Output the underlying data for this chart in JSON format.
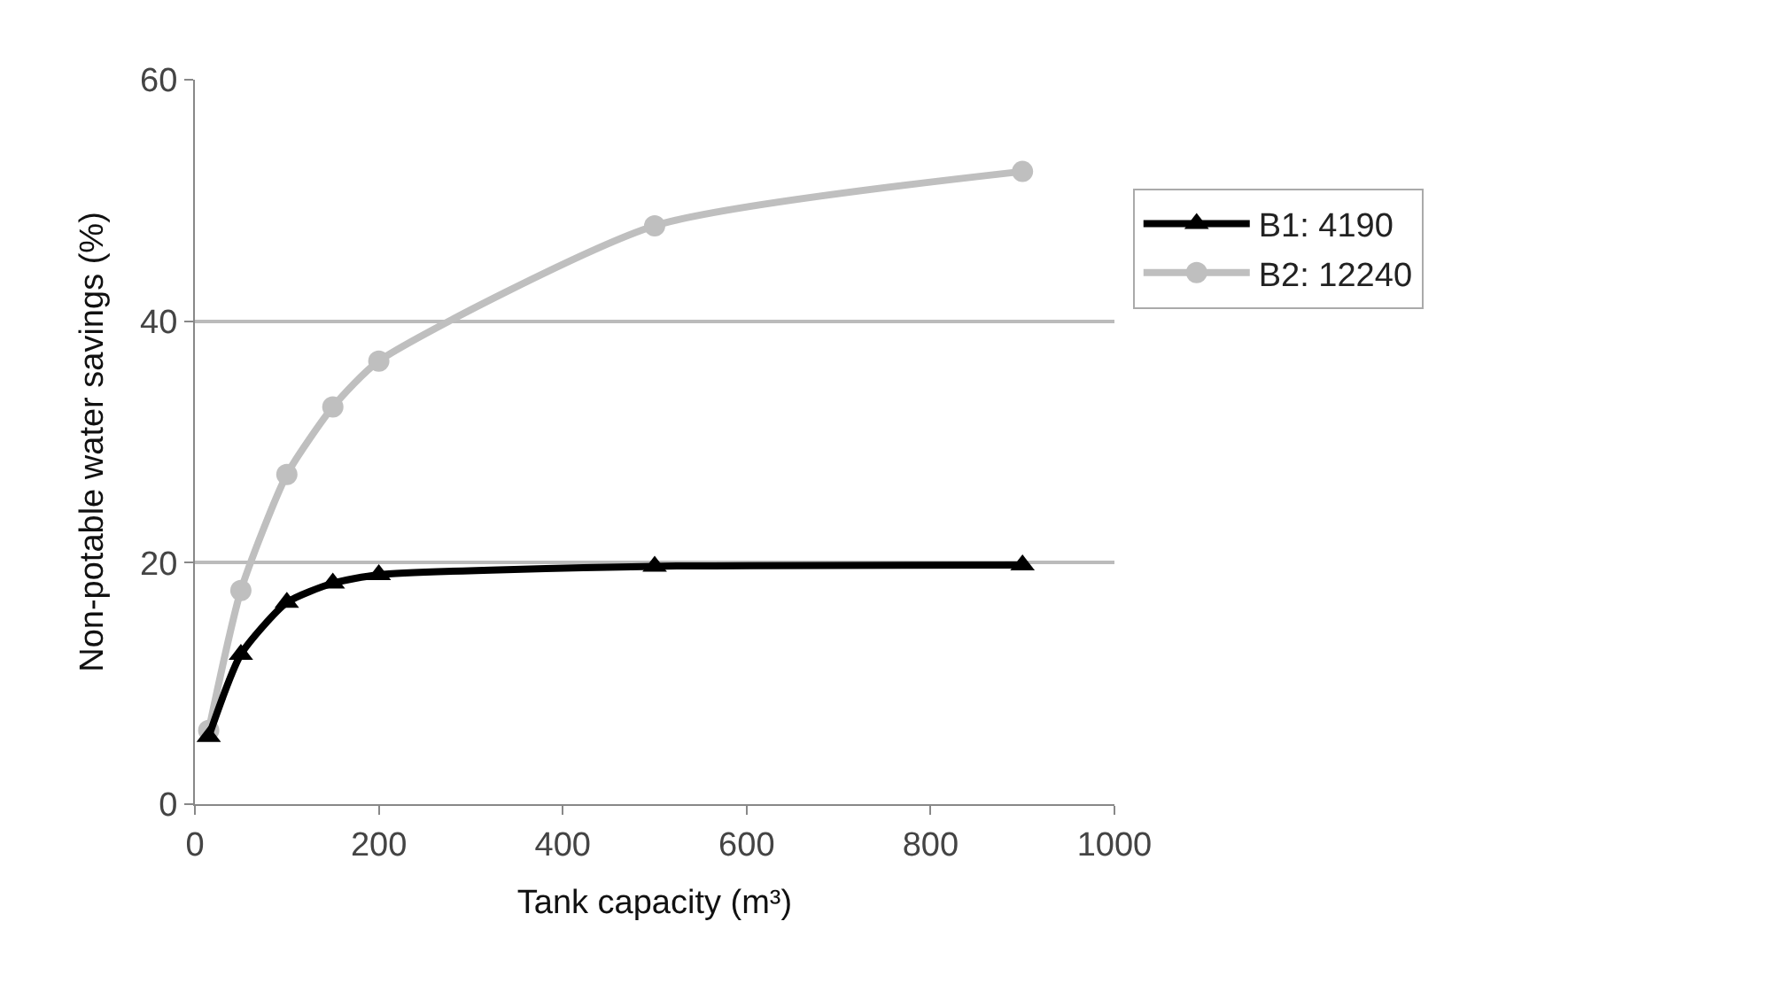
{
  "chart_data": {
    "type": "line",
    "xlabel": "Tank capacity (m³)",
    "ylabel": "Non-potable water savings (%)",
    "x": [
      15,
      50,
      100,
      150,
      200,
      500,
      900
    ],
    "series": [
      {
        "name": "B1: 4190",
        "color": "#000000",
        "marker": "triangle",
        "values": [
          5.6,
          12.4,
          16.7,
          18.3,
          19.0,
          19.7,
          19.8
        ]
      },
      {
        "name": "B2: 12240",
        "color": "#bfbfbf",
        "marker": "circle",
        "values": [
          6.1,
          17.7,
          27.3,
          32.9,
          36.7,
          47.9,
          52.4
        ]
      }
    ],
    "xlim": [
      0,
      1000
    ],
    "xticks": [
      0,
      200,
      400,
      600,
      800,
      1000
    ],
    "ylim": [
      0,
      60
    ],
    "yticks": [
      0,
      20,
      40,
      60
    ],
    "grid": "y",
    "legend": "right"
  }
}
